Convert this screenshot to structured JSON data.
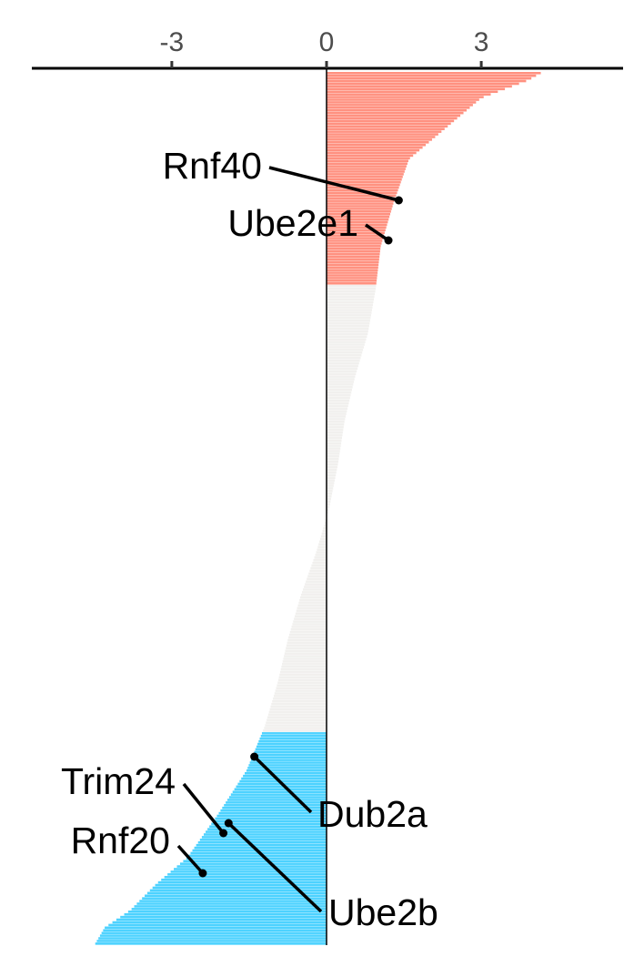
{
  "chart_data": {
    "type": "bar",
    "orientation": "horizontal",
    "description_of_values": "ranked per-gene scores, descending from top to bottom",
    "x_ticks": [
      {
        "value": -3,
        "label": "-3"
      },
      {
        "value": 0,
        "label": "0"
      },
      {
        "value": 3,
        "label": "3"
      }
    ],
    "xlim": [
      -5.7,
      5.7
    ],
    "xlabel": "",
    "ylabel": "",
    "colors": {
      "positive_significant": "#FF9180",
      "negative_significant": "#4DD2FF",
      "not_significant": "#F1F0EE",
      "axis": "#000000"
    },
    "groups": [
      {
        "name": "positive_significant",
        "count": 80
      },
      {
        "name": "not_significant",
        "count": 168
      },
      {
        "name": "negative_significant",
        "count": 80
      }
    ],
    "profile": {
      "rank_fraction": [
        0,
        0.01,
        0.03,
        0.06,
        0.1,
        0.15,
        0.2,
        0.25,
        0.3,
        0.35,
        0.4,
        0.45,
        0.5,
        0.55,
        0.6,
        0.65,
        0.7,
        0.75,
        0.8,
        0.85,
        0.9,
        0.93,
        0.96,
        0.98,
        1.0
      ],
      "values": [
        4.2,
        3.9,
        3.0,
        2.4,
        1.6,
        1.3,
        1.05,
        0.95,
        0.8,
        0.55,
        0.35,
        0.22,
        0.05,
        -0.2,
        -0.5,
        -0.75,
        -0.95,
        -1.2,
        -1.55,
        -2.1,
        -2.7,
        -3.3,
        -3.8,
        -4.3,
        -4.5
      ]
    },
    "annotations": [
      {
        "label": "Rnf40",
        "value": 1.4
      },
      {
        "label": "Ube2e1",
        "value": 1.2
      },
      {
        "label": "Dub2a",
        "value": -1.4
      },
      {
        "label": "Trim24",
        "value": -2.0
      },
      {
        "label": "Ube2b",
        "value": -1.9
      },
      {
        "label": "Rnf20",
        "value": -2.4
      }
    ]
  }
}
